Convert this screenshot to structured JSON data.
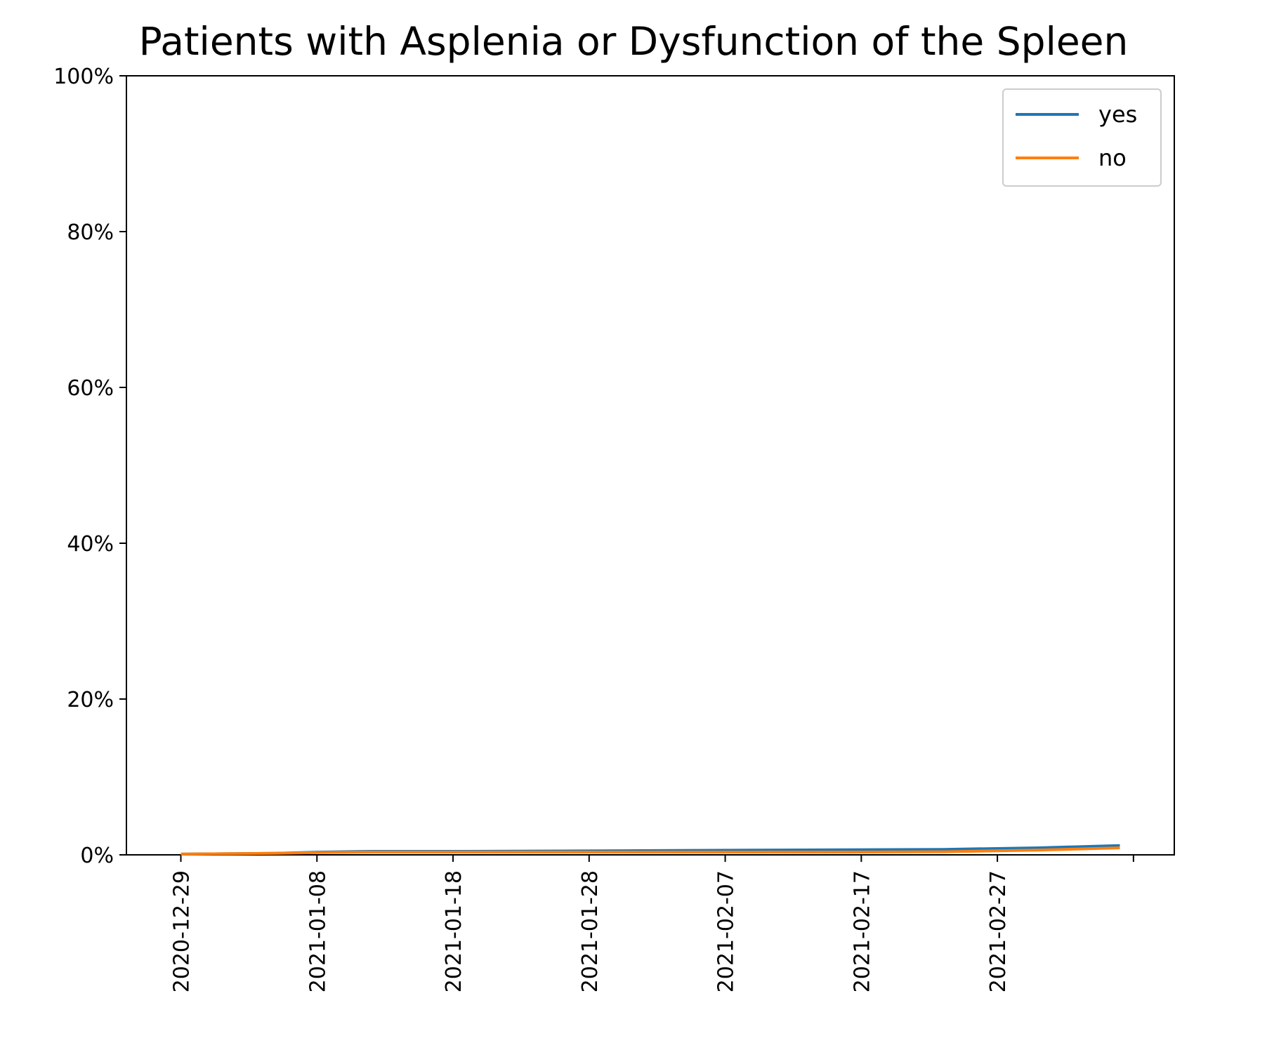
{
  "chart_data": {
    "type": "line",
    "title": "Patients with Asplenia or Dysfunction of the Spleen",
    "xlabel": "",
    "ylabel": "",
    "x_type": "date",
    "xlim": [
      "2020-12-25",
      "2021-03-12"
    ],
    "ylim": [
      0,
      100
    ],
    "y_ticks": [
      0,
      20,
      40,
      60,
      80,
      100
    ],
    "y_tick_labels": [
      "0%",
      "20%",
      "40%",
      "60%",
      "80%",
      "100%"
    ],
    "x_ticks": [
      "2020-12-29",
      "2021-01-08",
      "2021-01-18",
      "2021-01-28",
      "2021-02-07",
      "2021-02-17",
      "2021-02-27",
      "2021-03-09"
    ],
    "x_tick_labels": [
      "2020-12-29",
      "2021-01-08",
      "2021-01-18",
      "2021-01-28",
      "2021-02-07",
      "2021-02-17",
      "2021-02-27",
      ""
    ],
    "grid": false,
    "legend": "top-right",
    "x": [
      "2020-12-29",
      "2021-01-05",
      "2021-01-08",
      "2021-01-12",
      "2021-01-19",
      "2021-01-26",
      "2021-02-02",
      "2021-02-09",
      "2021-02-16",
      "2021-02-23",
      "2021-03-02",
      "2021-03-08"
    ],
    "series": [
      {
        "name": "yes",
        "color": "#1f77b4",
        "values": [
          0.1,
          0.2,
          0.35,
          0.45,
          0.45,
          0.5,
          0.55,
          0.6,
          0.65,
          0.7,
          0.9,
          1.2
        ]
      },
      {
        "name": "no",
        "color": "#ff7f0e",
        "values": [
          0.1,
          0.2,
          0.3,
          0.35,
          0.35,
          0.35,
          0.35,
          0.35,
          0.35,
          0.4,
          0.6,
          0.9
        ]
      }
    ]
  }
}
